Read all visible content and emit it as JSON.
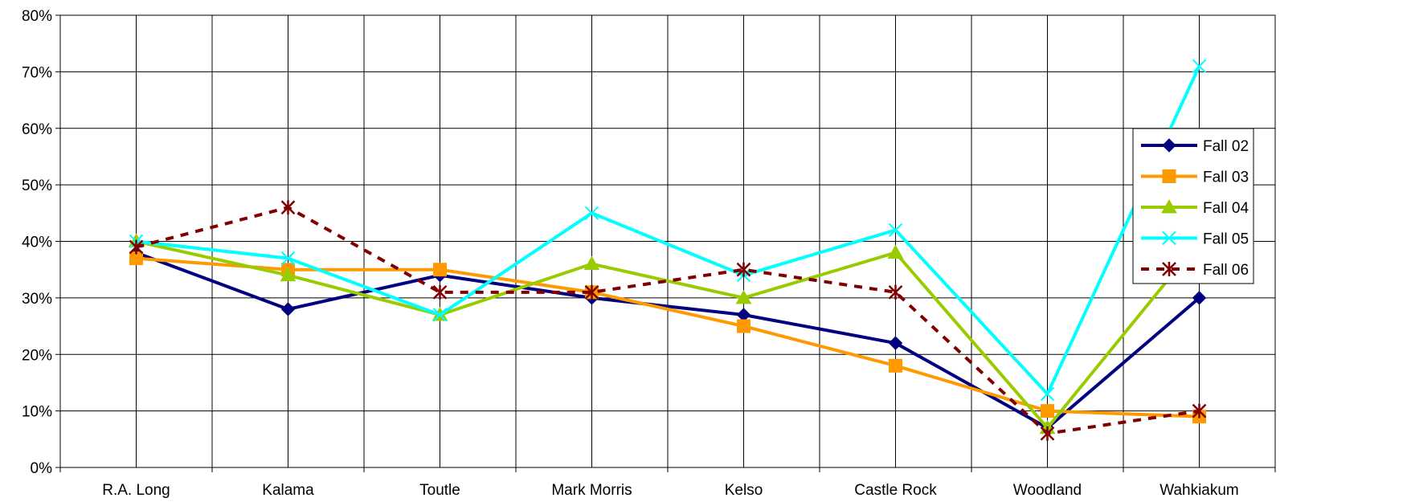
{
  "chart_data": {
    "type": "line",
    "title": "",
    "xlabel": "",
    "ylabel": "",
    "categories": [
      "R.A. Long",
      "Kalama",
      "Toutle",
      "Mark Morris",
      "Kelso",
      "Castle Rock",
      "Woodland",
      "Wahkiakum"
    ],
    "y_ticks": [
      "0%",
      "10%",
      "20%",
      "30%",
      "40%",
      "50%",
      "60%",
      "70%",
      "80%"
    ],
    "ylim": [
      0,
      80
    ],
    "grid": true,
    "legend_position": "right",
    "series": [
      {
        "name": "Fall 02",
        "values": [
          38,
          28,
          34,
          30,
          27,
          22,
          7,
          30
        ],
        "color": "#000080",
        "marker": "diamond",
        "dash": "solid"
      },
      {
        "name": "Fall 03",
        "values": [
          37,
          35,
          35,
          31,
          25,
          18,
          10,
          9
        ],
        "color": "#FF9900",
        "marker": "square",
        "dash": "solid"
      },
      {
        "name": "Fall 04",
        "values": [
          40,
          34,
          27,
          36,
          30,
          38,
          7,
          40
        ],
        "color": "#99CC00",
        "marker": "triangle",
        "dash": "solid"
      },
      {
        "name": "Fall 05",
        "values": [
          40,
          37,
          27,
          45,
          34,
          42,
          13,
          71
        ],
        "color": "#00FFFF",
        "marker": "x",
        "dash": "solid"
      },
      {
        "name": "Fall 06",
        "values": [
          39,
          46,
          31,
          31,
          35,
          31,
          6,
          10
        ],
        "color": "#800000",
        "marker": "star",
        "dash": "dashed"
      }
    ]
  }
}
